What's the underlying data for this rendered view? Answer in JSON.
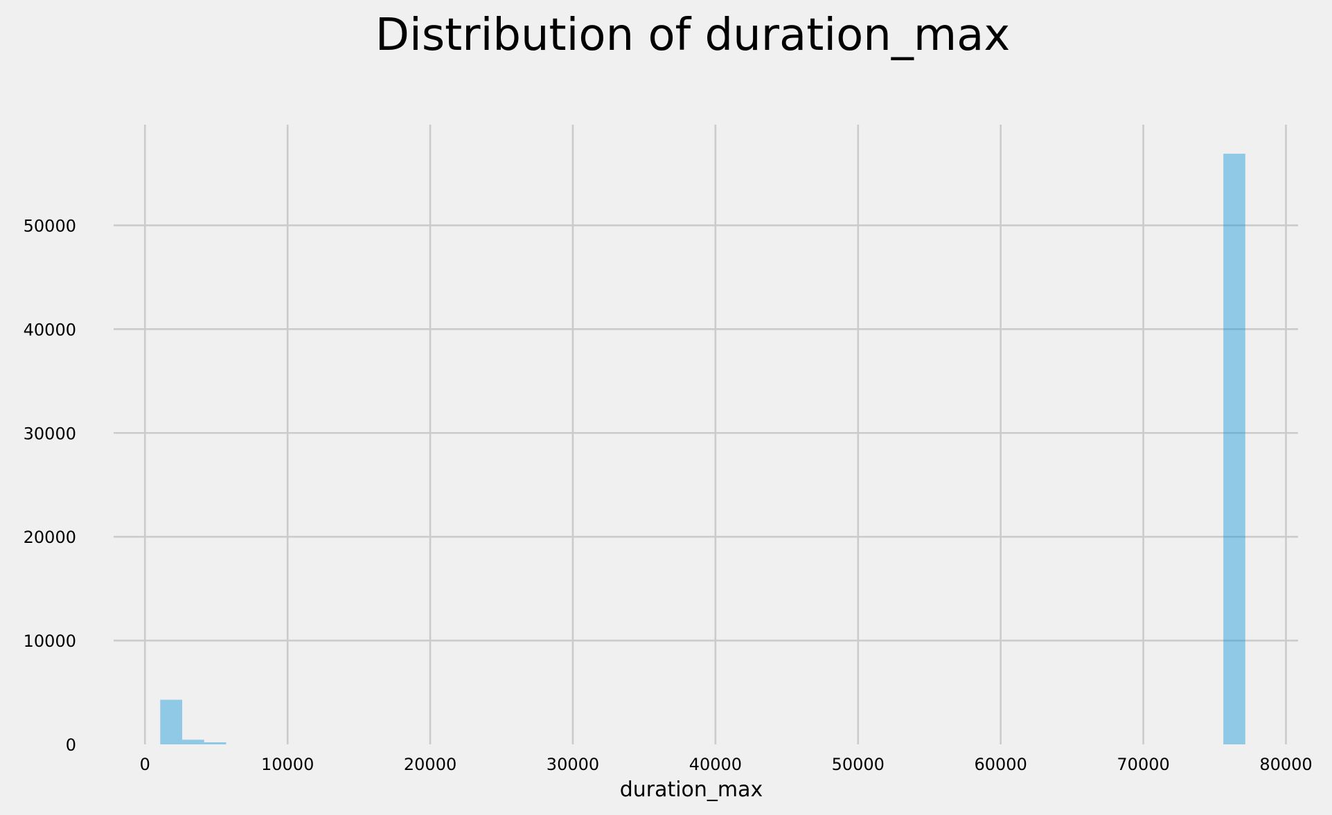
{
  "chart_data": {
    "type": "bar",
    "title": "Distribution of duration_max",
    "xlabel": "duration_max",
    "ylabel": "",
    "xlim": [
      -3850,
      80850
    ],
    "ylim": [
      0,
      59700
    ],
    "xticks": [
      0,
      10000,
      20000,
      30000,
      40000,
      50000,
      60000,
      70000,
      80000
    ],
    "yticks": [
      0,
      10000,
      20000,
      30000,
      40000,
      50000
    ],
    "xtick_labels": [
      "0",
      "10000",
      "20000",
      "30000",
      "40000",
      "50000",
      "60000",
      "70000",
      "80000"
    ],
    "ytick_labels": [
      "0",
      "10000",
      "20000",
      "30000",
      "40000",
      "50000"
    ],
    "grid": true,
    "bar_color": "#008fd5",
    "bins": [
      {
        "x0": 1070,
        "x1": 2610,
        "count": 4300
      },
      {
        "x0": 2610,
        "x1": 4150,
        "count": 450
      },
      {
        "x0": 4150,
        "x1": 5690,
        "count": 200
      },
      {
        "x0": 75610,
        "x1": 77150,
        "count": 56900
      }
    ]
  }
}
